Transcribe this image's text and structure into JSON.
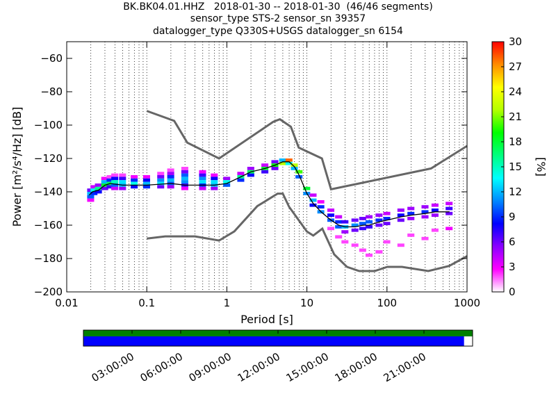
{
  "title": {
    "line1": "BK.BK04.01.HHZ   2018-01-30 -- 2018-01-30  (46/46 segments)",
    "line2": "sensor_type STS-2 sensor_sn 39357",
    "line3": "datalogger_type Q330S+USGS datalogger_sn 6154"
  },
  "chart_data": [
    {
      "type": "heatmap",
      "title": "BK.BK04.01.HHZ   2018-01-30 -- 2018-01-30  (46/46 segments)",
      "xlabel": "Period [s]",
      "ylabel": "Power [m²/s⁴/Hz] [dB]",
      "xscale": "log",
      "xlim": [
        0.01,
        1000
      ],
      "ylim": [
        -200,
        -50
      ],
      "x_tick_values": [
        0.01,
        0.1,
        1,
        10,
        100,
        1000
      ],
      "x_tick_labels": [
        "0.01",
        "0.1",
        "1",
        "10",
        "100",
        "1000"
      ],
      "y_tick_values": [
        -200,
        -180,
        -160,
        -140,
        -120,
        -100,
        -80,
        -60
      ],
      "y_tick_labels": [
        "−200",
        "−180",
        "−160",
        "−140",
        "−120",
        "−100",
        "−80",
        "−60"
      ],
      "grid": "dotted vertical",
      "colorbar": {
        "label": "[%]",
        "range": [
          0,
          30
        ],
        "tick_values": [
          0,
          3,
          6,
          9,
          12,
          15,
          18,
          21,
          24,
          27,
          30
        ],
        "tick_labels": [
          "0",
          "3",
          "6",
          "9",
          "12",
          "15",
          "18",
          "21",
          "24",
          "27",
          "30"
        ],
        "colors": [
          "#ffffff",
          "#ff00ff",
          "#8a00ff",
          "#0000ff",
          "#0088ff",
          "#00ffff",
          "#00ff7f",
          "#00ff00",
          "#b4ff00",
          "#ffff00",
          "#ff8c00",
          "#ff0000"
        ]
      },
      "mode_curve": {
        "x": [
          0.019,
          0.021,
          0.025,
          0.03,
          0.035,
          0.05,
          0.1,
          0.2,
          0.3,
          0.5,
          0.7,
          1.0,
          1.5,
          2.0,
          3.0,
          4.0,
          5.0,
          6.0,
          7.0,
          8.0,
          10,
          12,
          15,
          20,
          25,
          30,
          40,
          50,
          60,
          80,
          100,
          150,
          200,
          300,
          400,
          600
        ],
        "y": [
          -142,
          -140,
          -139,
          -136,
          -135,
          -136,
          -136,
          -135,
          -136,
          -136,
          -136,
          -135,
          -131,
          -128,
          -126,
          -124,
          -122,
          -122,
          -125,
          -130,
          -141,
          -147,
          -152,
          -157,
          -160,
          -161,
          -161,
          -160,
          -160,
          -158,
          -157,
          -155,
          -154,
          -153,
          -152,
          -152
        ]
      },
      "noise_models": [
        {
          "name": "NHNM",
          "x": [
            0.1,
            0.22,
            0.32,
            0.8,
            3.8,
            4.6,
            6.3,
            7.9,
            15.4,
            20,
            354.8,
            1000
          ],
          "y": [
            -91.5,
            -97.4,
            -110.5,
            -120.0,
            -98.0,
            -96.5,
            -101.0,
            -113.5,
            -120.0,
            -138.5,
            -126.0,
            -112.5
          ]
        },
        {
          "name": "NLNM",
          "x": [
            0.1,
            0.17,
            0.4,
            0.8,
            1.24,
            2.4,
            4.3,
            5.0,
            6.0,
            10.0,
            12.0,
            15.6,
            21.9,
            31.6,
            45.0,
            70.0,
            101.0,
            154.0,
            328.0,
            600.0,
            1000
          ],
          "y": [
            -168.0,
            -166.7,
            -166.7,
            -169.2,
            -163.7,
            -148.6,
            -141.1,
            -141.1,
            -149.0,
            -163.8,
            -166.2,
            -162.1,
            -177.5,
            -185.0,
            -187.5,
            -187.5,
            -185.0,
            -185.0,
            -187.5,
            -184.4,
            -178.6
          ]
        }
      ],
      "histogram_cells": [
        [
          0.02,
          -139,
          6
        ],
        [
          0.02,
          -141,
          12
        ],
        [
          0.02,
          -143,
          10
        ],
        [
          0.02,
          -145,
          3
        ],
        [
          0.022,
          -137,
          4
        ],
        [
          0.022,
          -139,
          14
        ],
        [
          0.022,
          -141,
          9
        ],
        [
          0.025,
          -136,
          5
        ],
        [
          0.025,
          -138,
          16
        ],
        [
          0.025,
          -140,
          8
        ],
        [
          0.03,
          -132,
          3
        ],
        [
          0.03,
          -134,
          12
        ],
        [
          0.03,
          -136,
          18
        ],
        [
          0.03,
          -138,
          6
        ],
        [
          0.035,
          -131,
          2
        ],
        [
          0.035,
          -133,
          9
        ],
        [
          0.035,
          -135,
          17
        ],
        [
          0.035,
          -137,
          7
        ],
        [
          0.04,
          -130,
          2
        ],
        [
          0.04,
          -132,
          8
        ],
        [
          0.04,
          -134,
          15
        ],
        [
          0.04,
          -136,
          10
        ],
        [
          0.04,
          -138,
          4
        ],
        [
          0.05,
          -130,
          2
        ],
        [
          0.05,
          -132,
          7
        ],
        [
          0.05,
          -134,
          13
        ],
        [
          0.05,
          -136,
          12
        ],
        [
          0.05,
          -138,
          5
        ],
        [
          0.07,
          -131,
          3
        ],
        [
          0.07,
          -133,
          9
        ],
        [
          0.07,
          -135,
          14
        ],
        [
          0.07,
          -137,
          8
        ],
        [
          0.1,
          -131,
          3
        ],
        [
          0.1,
          -133,
          8
        ],
        [
          0.1,
          -135,
          12
        ],
        [
          0.1,
          -137,
          9
        ],
        [
          0.15,
          -129,
          2
        ],
        [
          0.15,
          -131,
          6
        ],
        [
          0.15,
          -133,
          11
        ],
        [
          0.15,
          -135,
          13
        ],
        [
          0.15,
          -137,
          6
        ],
        [
          0.2,
          -127,
          2
        ],
        [
          0.2,
          -129,
          5
        ],
        [
          0.2,
          -131,
          9
        ],
        [
          0.2,
          -133,
          12
        ],
        [
          0.2,
          -135,
          10
        ],
        [
          0.2,
          -137,
          5
        ],
        [
          0.3,
          -126,
          2
        ],
        [
          0.3,
          -128,
          6
        ],
        [
          0.3,
          -130,
          10
        ],
        [
          0.3,
          -132,
          12
        ],
        [
          0.3,
          -134,
          11
        ],
        [
          0.3,
          -136,
          7
        ],
        [
          0.3,
          -138,
          3
        ],
        [
          0.5,
          -128,
          3
        ],
        [
          0.5,
          -130,
          7
        ],
        [
          0.5,
          -132,
          11
        ],
        [
          0.5,
          -134,
          13
        ],
        [
          0.5,
          -136,
          9
        ],
        [
          0.5,
          -138,
          4
        ],
        [
          0.7,
          -130,
          3
        ],
        [
          0.7,
          -132,
          8
        ],
        [
          0.7,
          -134,
          13
        ],
        [
          0.7,
          -136,
          12
        ],
        [
          0.7,
          -138,
          5
        ],
        [
          1.0,
          -132,
          5
        ],
        [
          1.0,
          -134,
          14
        ],
        [
          1.0,
          -136,
          10
        ],
        [
          1.5,
          -129,
          4
        ],
        [
          1.5,
          -131,
          16
        ],
        [
          1.5,
          -133,
          9
        ],
        [
          2.0,
          -126,
          5
        ],
        [
          2.0,
          -128,
          17
        ],
        [
          2.0,
          -130,
          8
        ],
        [
          3.0,
          -124,
          4
        ],
        [
          3.0,
          -126,
          18
        ],
        [
          3.0,
          -128,
          7
        ],
        [
          4.0,
          -122,
          6
        ],
        [
          4.0,
          -124,
          19
        ],
        [
          4.0,
          -126,
          6
        ],
        [
          5.0,
          -121,
          12
        ],
        [
          5.0,
          -123,
          22
        ],
        [
          6.0,
          -121,
          28
        ],
        [
          6.0,
          -123,
          14
        ],
        [
          7.0,
          -124,
          22
        ],
        [
          7.0,
          -126,
          12
        ],
        [
          8.0,
          -128,
          20
        ],
        [
          8.0,
          -131,
          10
        ],
        [
          10,
          -138,
          18
        ],
        [
          10,
          -141,
          11
        ],
        [
          12,
          -145,
          12
        ],
        [
          12,
          -148,
          8
        ],
        [
          12,
          -142,
          4
        ],
        [
          15,
          -149,
          9
        ],
        [
          15,
          -152,
          11
        ],
        [
          15,
          -146,
          3
        ],
        [
          20,
          -154,
          8
        ],
        [
          20,
          -157,
          10
        ],
        [
          20,
          -151,
          4
        ],
        [
          20,
          -162,
          2
        ],
        [
          25,
          -158,
          9
        ],
        [
          25,
          -161,
          10
        ],
        [
          25,
          -155,
          4
        ],
        [
          25,
          -167,
          2
        ],
        [
          30,
          -158,
          7
        ],
        [
          30,
          -161,
          12
        ],
        [
          30,
          -164,
          5
        ],
        [
          30,
          -170,
          2
        ],
        [
          40,
          -157,
          6
        ],
        [
          40,
          -160,
          11
        ],
        [
          40,
          -163,
          6
        ],
        [
          40,
          -172,
          2
        ],
        [
          50,
          -156,
          6
        ],
        [
          50,
          -159,
          10
        ],
        [
          50,
          -162,
          7
        ],
        [
          50,
          -175,
          2
        ],
        [
          60,
          -155,
          5
        ],
        [
          60,
          -158,
          10
        ],
        [
          60,
          -161,
          7
        ],
        [
          60,
          -178,
          2
        ],
        [
          80,
          -154,
          5
        ],
        [
          80,
          -157,
          9
        ],
        [
          80,
          -160,
          6
        ],
        [
          80,
          -176,
          2
        ],
        [
          100,
          -153,
          4
        ],
        [
          100,
          -156,
          9
        ],
        [
          100,
          -159,
          6
        ],
        [
          100,
          -170,
          2
        ],
        [
          150,
          -151,
          5
        ],
        [
          150,
          -154,
          8
        ],
        [
          150,
          -157,
          6
        ],
        [
          150,
          -172,
          2
        ],
        [
          200,
          -150,
          5
        ],
        [
          200,
          -153,
          9
        ],
        [
          200,
          -156,
          5
        ],
        [
          200,
          -166,
          2
        ],
        [
          300,
          -149,
          5
        ],
        [
          300,
          -152,
          9
        ],
        [
          300,
          -155,
          5
        ],
        [
          300,
          -168,
          2
        ],
        [
          400,
          -148,
          4
        ],
        [
          400,
          -151,
          8
        ],
        [
          400,
          -154,
          5
        ],
        [
          400,
          -163,
          2
        ],
        [
          600,
          -147,
          4
        ],
        [
          600,
          -150,
          7
        ],
        [
          600,
          -153,
          6
        ],
        [
          600,
          -162,
          3
        ]
      ]
    },
    {
      "type": "table",
      "description_hidden": true,
      "time_ticks": [
        "03:00:00",
        "06:00:00",
        "09:00:00",
        "12:00:00",
        "15:00:00",
        "18:00:00",
        "21:00:00"
      ],
      "green_coverage": [
        0.0,
        1.0
      ],
      "blue_coverage": [
        0.0,
        0.978
      ],
      "colors": {
        "green": "#008000",
        "blue": "#0000ff"
      }
    }
  ]
}
